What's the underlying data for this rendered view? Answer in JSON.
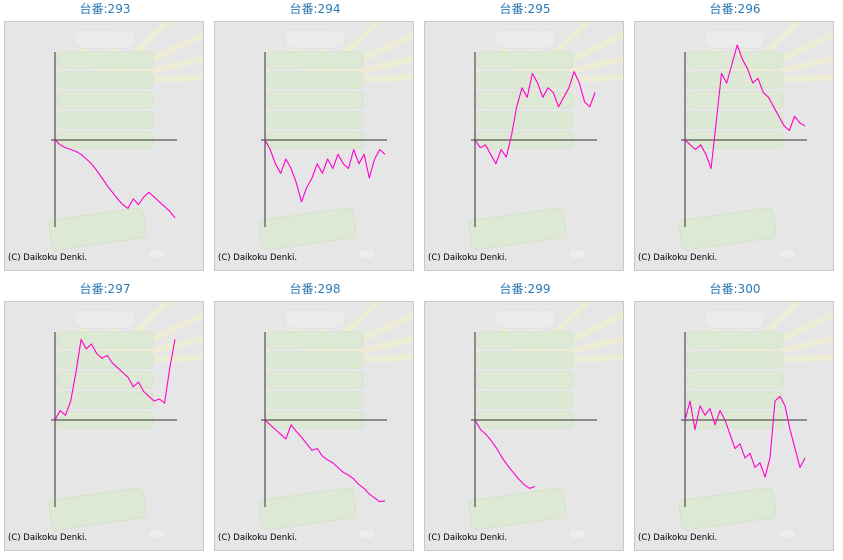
{
  "copyright": "(C) Daikoku Denki.",
  "line_color": "#ff00cc",
  "chart_data": [
    {
      "type": "line",
      "title": "台番:293",
      "y": [
        0,
        -0.05,
        -0.08,
        -0.1,
        -0.12,
        -0.15,
        -0.2,
        -0.25,
        -0.32,
        -0.4,
        -0.48,
        -0.55,
        -0.62,
        -0.68,
        -0.72,
        -0.62,
        -0.68,
        -0.6,
        -0.55,
        -0.6,
        -0.65,
        -0.7,
        -0.75,
        -0.82
      ]
    },
    {
      "type": "line",
      "title": "台番:294",
      "y": [
        0,
        -0.1,
        -0.25,
        -0.35,
        -0.2,
        -0.3,
        -0.45,
        -0.65,
        -0.5,
        -0.4,
        -0.25,
        -0.35,
        -0.2,
        -0.3,
        -0.15,
        -0.25,
        -0.3,
        -0.1,
        -0.25,
        -0.15,
        -0.4,
        -0.2,
        -0.1,
        -0.15
      ]
    },
    {
      "type": "line",
      "title": "台番:295",
      "y": [
        0,
        -0.08,
        -0.05,
        -0.15,
        -0.25,
        -0.1,
        -0.18,
        0.05,
        0.35,
        0.55,
        0.45,
        0.7,
        0.6,
        0.45,
        0.55,
        0.5,
        0.35,
        0.45,
        0.55,
        0.72,
        0.6,
        0.4,
        0.35,
        0.5
      ]
    },
    {
      "type": "line",
      "title": "台番:296",
      "y": [
        0,
        -0.05,
        -0.1,
        -0.05,
        -0.15,
        -0.3,
        0.2,
        0.7,
        0.6,
        0.8,
        1.0,
        0.85,
        0.75,
        0.6,
        0.65,
        0.5,
        0.45,
        0.35,
        0.25,
        0.15,
        0.1,
        0.25,
        0.18,
        0.15
      ]
    },
    {
      "type": "line",
      "title": "台番:297",
      "y": [
        0,
        0.1,
        0.05,
        0.2,
        0.5,
        0.85,
        0.75,
        0.8,
        0.7,
        0.65,
        0.68,
        0.6,
        0.55,
        0.5,
        0.45,
        0.35,
        0.4,
        0.3,
        0.25,
        0.2,
        0.22,
        0.18,
        0.55,
        0.85
      ]
    },
    {
      "type": "line",
      "title": "台番:298",
      "y": [
        0,
        -0.05,
        -0.1,
        -0.15,
        -0.2,
        -0.05,
        -0.12,
        -0.18,
        -0.25,
        -0.32,
        -0.3,
        -0.38,
        -0.42,
        -0.45,
        -0.5,
        -0.55,
        -0.58,
        -0.62,
        -0.68,
        -0.72,
        -0.78,
        -0.82,
        -0.86,
        -0.85
      ]
    },
    {
      "type": "line",
      "title": "台番:299",
      "y": [
        0,
        -0.1,
        -0.15,
        -0.22,
        -0.3,
        -0.4,
        -0.48,
        -0.55,
        -0.62,
        -0.68,
        -0.72,
        -0.7
      ]
    },
    {
      "type": "line",
      "title": "台番:300",
      "y": [
        0,
        0.2,
        -0.1,
        0.15,
        0.05,
        0.12,
        -0.05,
        0.1,
        0.0,
        -0.15,
        -0.3,
        -0.25,
        -0.4,
        -0.35,
        -0.5,
        -0.45,
        -0.6,
        -0.4,
        0.2,
        0.25,
        0.15,
        -0.1,
        -0.3,
        -0.5,
        -0.4
      ]
    }
  ]
}
